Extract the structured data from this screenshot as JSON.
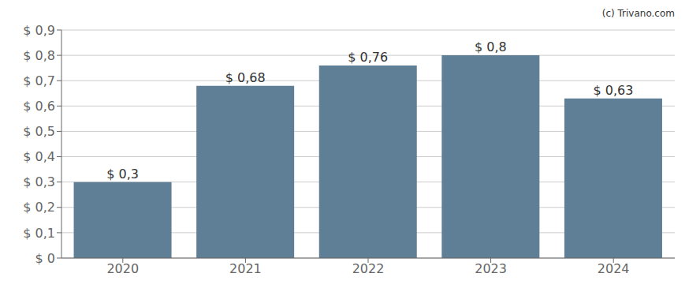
{
  "chart_data": {
    "type": "bar",
    "annotation": "(c) Trivano.com",
    "categories": [
      "2020",
      "2021",
      "2022",
      "2023",
      "2024"
    ],
    "values": [
      0.3,
      0.68,
      0.76,
      0.8,
      0.63
    ],
    "value_labels": [
      "$ 0,3",
      "$ 0,68",
      "$ 0,76",
      "$ 0,8",
      "$ 0,63"
    ],
    "data_labels": true,
    "color": "#5f7f96",
    "ylim": [
      0,
      0.9
    ],
    "yticks": [
      {
        "value": 0,
        "label": "$ 0"
      },
      {
        "value": 0.1,
        "label": "$ 0,1"
      },
      {
        "value": 0.2,
        "label": "$ 0,2"
      },
      {
        "value": 0.3,
        "label": "$ 0,3"
      },
      {
        "value": 0.4,
        "label": "$ 0,4"
      },
      {
        "value": 0.5,
        "label": "$ 0,5"
      },
      {
        "value": 0.6,
        "label": "$ 0,6"
      },
      {
        "value": 0.7,
        "label": "$ 0,7"
      },
      {
        "value": 0.8,
        "label": "$ 0,8"
      },
      {
        "value": 0.9,
        "label": "$ 0,9"
      }
    ],
    "grid": true
  }
}
